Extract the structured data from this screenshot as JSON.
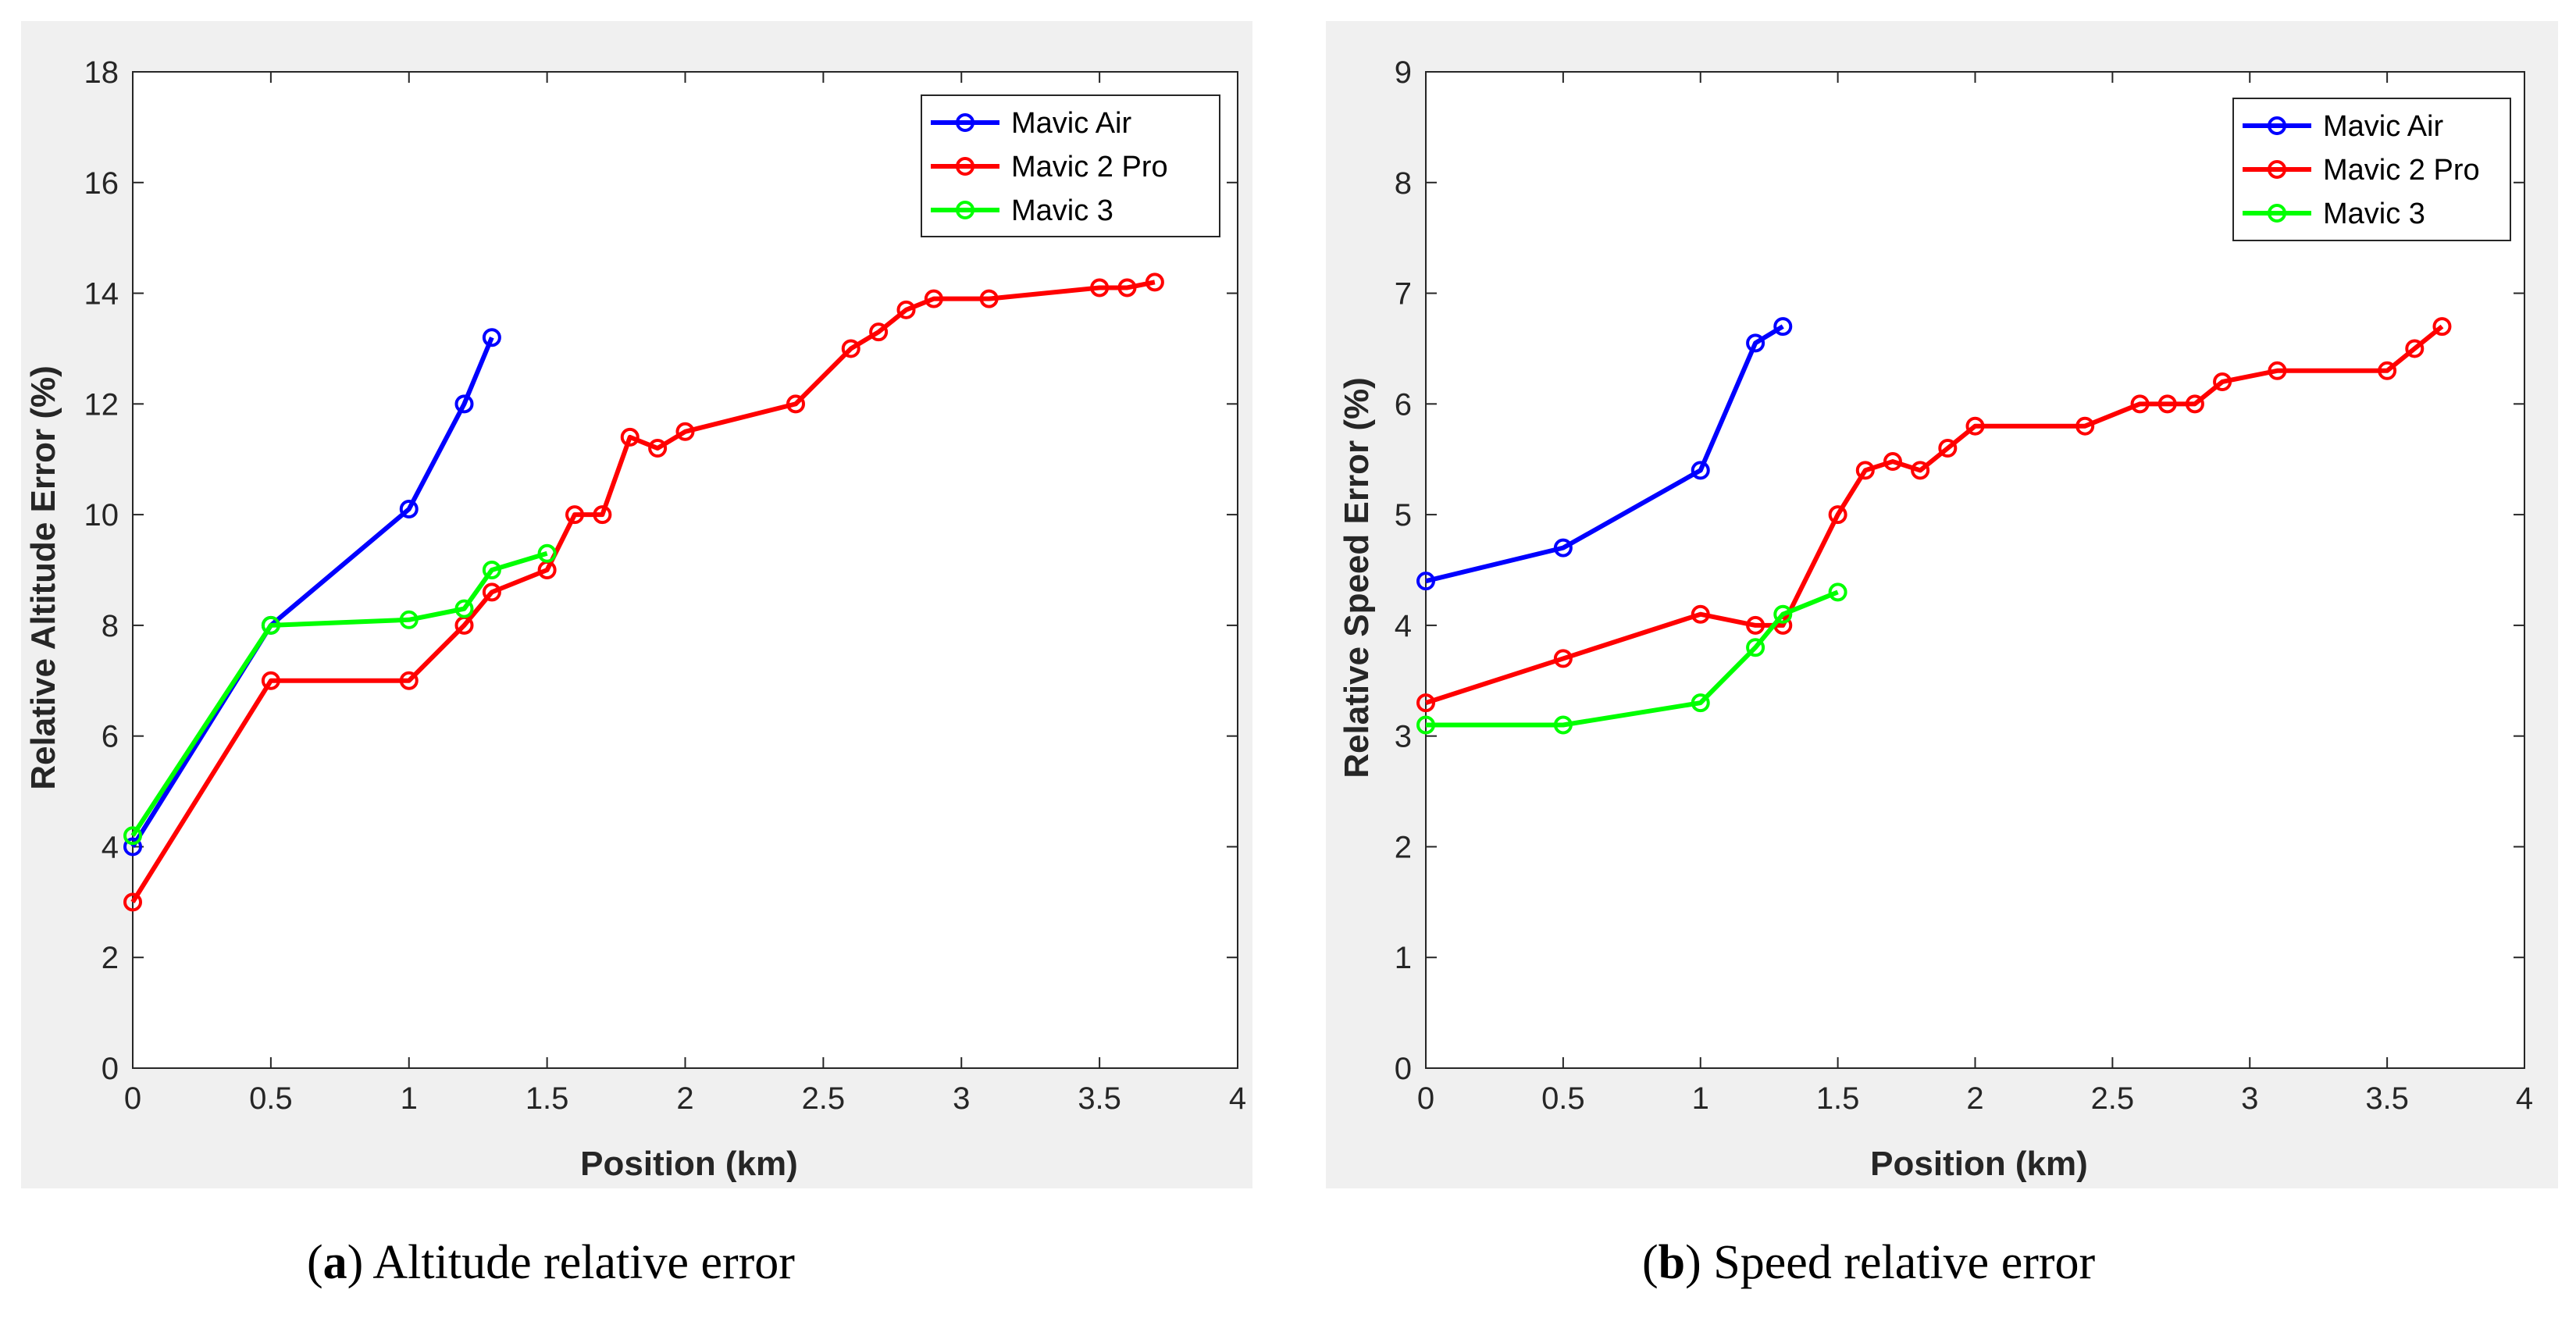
{
  "chart_data": [
    {
      "type": "line",
      "panel": "a",
      "xlabel": "Position (km)",
      "ylabel": "Relative Altitude Error (%)",
      "xlim": [
        0,
        4
      ],
      "ylim": [
        0,
        18
      ],
      "xticks": [
        0,
        0.5,
        1,
        1.5,
        2,
        2.5,
        3,
        3.5,
        4
      ],
      "yticks": [
        0,
        2,
        4,
        6,
        8,
        10,
        12,
        14,
        16,
        18
      ],
      "legend_position": "top-right",
      "series": [
        {
          "name": "Mavic Air",
          "color": "#0000ff",
          "x": [
            0,
            0.5,
            1,
            1.2,
            1.3
          ],
          "y": [
            4,
            8,
            10.1,
            12,
            13.2
          ]
        },
        {
          "name": "Mavic 2 Pro",
          "color": "#ff0000",
          "x": [
            0,
            0.5,
            1,
            1.2,
            1.3,
            1.5,
            1.6,
            1.7,
            1.8,
            1.9,
            2.0,
            2.4,
            2.6,
            2.7,
            2.8,
            2.9,
            3.1,
            3.5,
            3.6,
            3.7
          ],
          "y": [
            3,
            7,
            7,
            8,
            8.6,
            9,
            10,
            10,
            11.4,
            11.2,
            11.5,
            12,
            13,
            13.3,
            13.7,
            13.9,
            13.9,
            14.1,
            14.1,
            14.2
          ]
        },
        {
          "name": "Mavic 3",
          "color": "#00ff00",
          "x": [
            0,
            0.5,
            1,
            1.2,
            1.3,
            1.5
          ],
          "y": [
            4.2,
            8,
            8.1,
            8.3,
            9,
            9.3
          ]
        }
      ],
      "caption_label": "a",
      "caption_text": " Altitude relative error"
    },
    {
      "type": "line",
      "panel": "b",
      "xlabel": "Position (km)",
      "ylabel": "Relative Speed Error (%)",
      "xlim": [
        0,
        4
      ],
      "ylim": [
        0,
        9
      ],
      "xticks": [
        0,
        0.5,
        1,
        1.5,
        2,
        2.5,
        3,
        3.5,
        4
      ],
      "yticks": [
        0,
        1,
        2,
        3,
        4,
        5,
        6,
        7,
        8,
        9
      ],
      "legend_position": "top-right",
      "series": [
        {
          "name": "Mavic Air",
          "color": "#0000ff",
          "x": [
            0,
            0.5,
            1,
            1.2,
            1.3
          ],
          "y": [
            4.4,
            4.7,
            5.4,
            6.55,
            6.7
          ]
        },
        {
          "name": "Mavic 2 Pro",
          "color": "#ff0000",
          "x": [
            0,
            0.5,
            1,
            1.2,
            1.3,
            1.5,
            1.6,
            1.7,
            1.8,
            1.9,
            2.0,
            2.4,
            2.6,
            2.7,
            2.8,
            2.9,
            3.1,
            3.5,
            3.6,
            3.7
          ],
          "y": [
            3.3,
            3.7,
            4.1,
            4.0,
            4.0,
            5.0,
            5.4,
            5.48,
            5.4,
            5.6,
            5.8,
            5.8,
            6.0,
            6.0,
            6.0,
            6.2,
            6.3,
            6.3,
            6.5,
            6.7
          ]
        },
        {
          "name": "Mavic 3",
          "color": "#00ff00",
          "x": [
            0,
            0.5,
            1,
            1.2,
            1.3,
            1.5
          ],
          "y": [
            3.1,
            3.1,
            3.3,
            3.8,
            4.1,
            4.3
          ]
        }
      ],
      "caption_label": "b",
      "caption_text": " Speed relative error"
    }
  ]
}
